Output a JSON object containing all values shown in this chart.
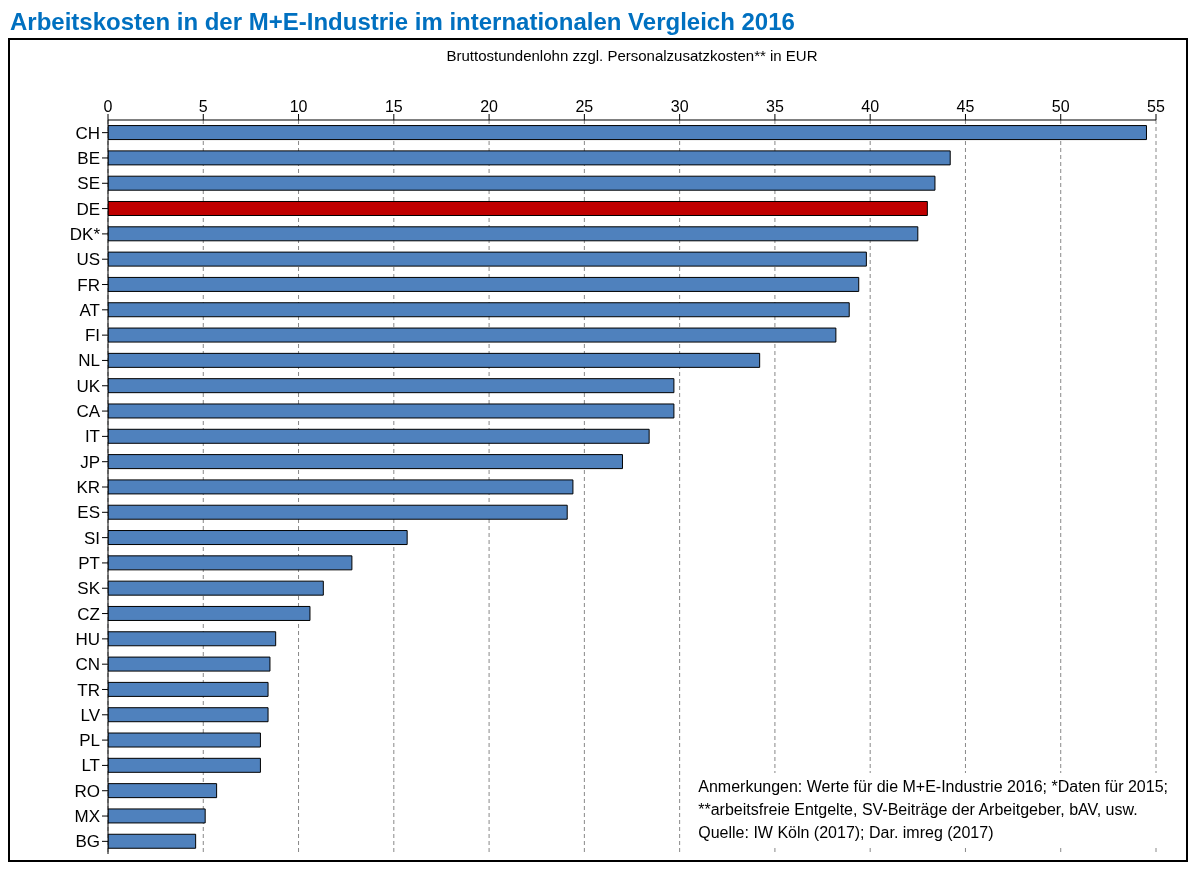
{
  "chart_data": {
    "type": "bar",
    "orientation": "horizontal",
    "title": "Arbeitskosten in der M+E-Industrie im internationalen Vergleich 2016",
    "xlabel": "Bruttostundenlohn  zzgl.  Personalzusatzkosten**  in EUR",
    "categories": [
      "CH",
      "BE",
      "SE",
      "DE",
      "DK*",
      "US",
      "FR",
      "AT",
      "FI",
      "NL",
      "UK",
      "CA",
      "IT",
      "JP",
      "KR",
      "ES",
      "SI",
      "PT",
      "SK",
      "CZ",
      "HU",
      "CN",
      "TR",
      "LV",
      "PL",
      "LT",
      "RO",
      "MX",
      "BG"
    ],
    "values": [
      54.5,
      44.2,
      43.4,
      43.0,
      42.5,
      39.8,
      39.4,
      38.9,
      38.2,
      34.2,
      29.7,
      29.7,
      28.4,
      27.0,
      24.4,
      24.1,
      15.7,
      12.8,
      11.3,
      10.6,
      8.8,
      8.5,
      8.4,
      8.4,
      8.0,
      8.0,
      5.7,
      5.1,
      4.6
    ],
    "colors": [
      "#4f81bd",
      "#4f81bd",
      "#4f81bd",
      "#c00000",
      "#4f81bd",
      "#4f81bd",
      "#4f81bd",
      "#4f81bd",
      "#4f81bd",
      "#4f81bd",
      "#4f81bd",
      "#4f81bd",
      "#4f81bd",
      "#4f81bd",
      "#4f81bd",
      "#4f81bd",
      "#4f81bd",
      "#4f81bd",
      "#4f81bd",
      "#4f81bd",
      "#4f81bd",
      "#4f81bd",
      "#4f81bd",
      "#4f81bd",
      "#4f81bd",
      "#4f81bd",
      "#4f81bd",
      "#4f81bd",
      "#4f81bd"
    ],
    "xlim": [
      0,
      55
    ],
    "xticks": [
      0,
      5,
      10,
      15,
      20,
      25,
      30,
      35,
      40,
      45,
      50,
      55
    ],
    "grid": "x",
    "annotations": [
      "Anmerkungen:  Werte für die M+E-Industrie  2016; *Daten für 2015;",
      "**arbeitsfreie Entgelte,  SV-Beiträge der Arbeitgeber, bAV, usw.",
      "Quelle:  IW Köln (2017); Dar. imreg (2017)"
    ]
  }
}
